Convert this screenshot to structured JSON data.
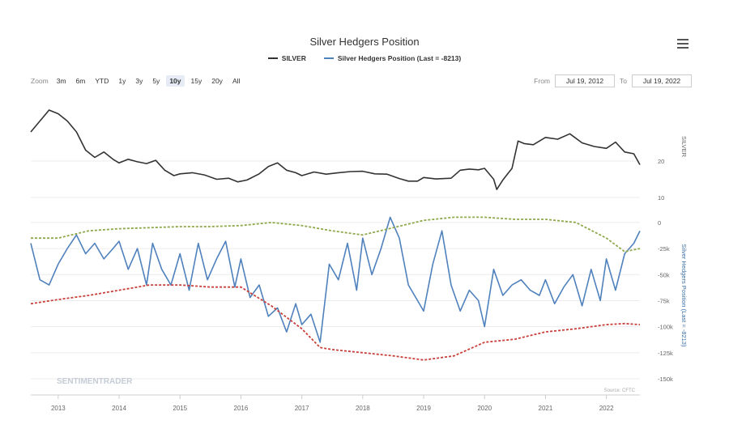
{
  "title": "Silver Hedgers Position",
  "legend": [
    {
      "label": "SILVER",
      "color": "#333333"
    },
    {
      "label": "Silver Hedgers Position (Last = -8213)",
      "color": "#4f81bd"
    }
  ],
  "zoom": {
    "label": "Zoom",
    "buttons": [
      "3m",
      "6m",
      "YTD",
      "1y",
      "3y",
      "5y",
      "10y",
      "15y",
      "20y",
      "All"
    ],
    "active": "10y"
  },
  "range": {
    "from_label": "From",
    "from_value": "Jul 19, 2012",
    "to_label": "To",
    "to_value": "Jul 19, 2022"
  },
  "source": "Source: CFTC",
  "watermark": "SENTIMENTRADER",
  "colors": {
    "silver": "#333333",
    "hedgers": "#4f81bd",
    "upper_band": "#8fa84a",
    "lower_band": "#c9403b"
  },
  "chart_data": {
    "type": "line",
    "x_ticks": [
      "2013",
      "2014",
      "2015",
      "2016",
      "2017",
      "2018",
      "2019",
      "2020",
      "2021",
      "2022"
    ],
    "x_range": [
      2012.55,
      2022.55
    ],
    "panels": [
      {
        "name": "SILVER",
        "ylabel": "SILVER",
        "y_ticks": [
          {
            "v": 20,
            "label": "20"
          },
          {
            "v": 10,
            "label": "10"
          }
        ],
        "ylim": [
          10,
          38
        ],
        "series": [
          {
            "name": "SILVER",
            "color": "#333333",
            "x": [
              2012.55,
              2012.7,
              2012.85,
              2013.0,
              2013.15,
              2013.3,
              2013.45,
              2013.6,
              2013.75,
              2013.9,
              2014.0,
              2014.15,
              2014.3,
              2014.45,
              2014.6,
              2014.75,
              2014.9,
              2015.0,
              2015.2,
              2015.4,
              2015.6,
              2015.8,
              2015.95,
              2016.1,
              2016.3,
              2016.45,
              2016.6,
              2016.75,
              2016.9,
              2017.0,
              2017.2,
              2017.4,
              2017.6,
              2017.8,
              2018.0,
              2018.2,
              2018.4,
              2018.6,
              2018.75,
              2018.9,
              2019.0,
              2019.2,
              2019.45,
              2019.6,
              2019.75,
              2019.9,
              2020.0,
              2020.15,
              2020.2,
              2020.3,
              2020.45,
              2020.55,
              2020.65,
              2020.8,
              2021.0,
              2021.2,
              2021.4,
              2021.6,
              2021.8,
              2022.0,
              2022.15,
              2022.3,
              2022.45,
              2022.55
            ],
            "y": [
              28,
              31,
              34,
              33,
              31,
              28,
              23,
              21,
              22.5,
              20.5,
              19.5,
              20.5,
              19.8,
              19.3,
              20.2,
              17.5,
              16,
              16.5,
              16.8,
              16.2,
              15,
              15.3,
              14.3,
              14.8,
              16.5,
              18.5,
              19.5,
              17.5,
              16.8,
              16,
              17,
              16.4,
              16.8,
              17.1,
              17.2,
              16.5,
              16.4,
              15.2,
              14.5,
              14.5,
              15.5,
              15.1,
              15.3,
              17.5,
              17.8,
              17.6,
              18,
              15,
              12.2,
              14.8,
              18,
              25.5,
              24.8,
              24.5,
              26.5,
              26,
              27.5,
              25,
              24,
              23.5,
              25.2,
              22.5,
              22,
              19
            ]
          }
        ]
      },
      {
        "name": "Silver Hedgers Position",
        "ylabel": "Silver Hedgers Position (Last = -8213)",
        "y_ticks": [
          {
            "v": 0,
            "label": "0"
          },
          {
            "v": -25000,
            "label": "-25k"
          },
          {
            "v": -50000,
            "label": "-50k"
          },
          {
            "v": -75000,
            "label": "-75k"
          },
          {
            "v": -100000,
            "label": "-100k"
          },
          {
            "v": -125000,
            "label": "-125k"
          },
          {
            "v": -150000,
            "label": "-150k"
          }
        ],
        "ylim": [
          -150000,
          10000
        ],
        "series": [
          {
            "name": "Silver Hedgers Position",
            "color": "#4f81bd",
            "x": [
              2012.55,
              2012.7,
              2012.85,
              2013.0,
              2013.15,
              2013.3,
              2013.45,
              2013.6,
              2013.75,
              2013.9,
              2014.0,
              2014.15,
              2014.3,
              2014.45,
              2014.55,
              2014.7,
              2014.85,
              2015.0,
              2015.15,
              2015.3,
              2015.45,
              2015.6,
              2015.75,
              2015.9,
              2016.0,
              2016.15,
              2016.3,
              2016.45,
              2016.6,
              2016.75,
              2016.9,
              2017.0,
              2017.15,
              2017.3,
              2017.45,
              2017.6,
              2017.75,
              2017.9,
              2018.0,
              2018.15,
              2018.3,
              2018.45,
              2018.6,
              2018.75,
              2018.9,
              2019.0,
              2019.15,
              2019.3,
              2019.45,
              2019.6,
              2019.75,
              2019.9,
              2020.0,
              2020.15,
              2020.3,
              2020.45,
              2020.6,
              2020.75,
              2020.9,
              2021.0,
              2021.15,
              2021.3,
              2021.45,
              2021.6,
              2021.75,
              2021.9,
              2022.0,
              2022.15,
              2022.3,
              2022.45,
              2022.55
            ],
            "y": [
              -20000,
              -55000,
              -60000,
              -40000,
              -25000,
              -12000,
              -30000,
              -20000,
              -35000,
              -25000,
              -18000,
              -45000,
              -25000,
              -60000,
              -20000,
              -45000,
              -60000,
              -30000,
              -65000,
              -20000,
              -55000,
              -35000,
              -18000,
              -62000,
              -35000,
              -72000,
              -60000,
              -90000,
              -82000,
              -105000,
              -78000,
              -98000,
              -88000,
              -115000,
              -40000,
              -55000,
              -20000,
              -65000,
              -15000,
              -50000,
              -25000,
              5000,
              -15000,
              -60000,
              -75000,
              -85000,
              -40000,
              -8000,
              -60000,
              -85000,
              -65000,
              -75000,
              -100000,
              -45000,
              -70000,
              -60000,
              -55000,
              -65000,
              -70000,
              -55000,
              -78000,
              -62000,
              -50000,
              -80000,
              -45000,
              -75000,
              -35000,
              -65000,
              -30000,
              -20000,
              -8213
            ]
          },
          {
            "name": "Upper band",
            "color": "#8fa84a",
            "dashed": true,
            "x": [
              2012.55,
              2013.0,
              2013.5,
              2014.0,
              2014.5,
              2015.0,
              2015.5,
              2016.0,
              2016.5,
              2017.0,
              2017.5,
              2018.0,
              2018.5,
              2019.0,
              2019.5,
              2020.0,
              2020.5,
              2021.0,
              2021.5,
              2022.0,
              2022.3,
              2022.55
            ],
            "y": [
              -15000,
              -15000,
              -8000,
              -6000,
              -5000,
              -4000,
              -4000,
              -3000,
              0,
              -3000,
              -8000,
              -12000,
              -5000,
              2000,
              5000,
              5000,
              3000,
              3000,
              0,
              -15000,
              -28000,
              -25000
            ]
          },
          {
            "name": "Lower band",
            "color": "#c9403b",
            "dashed": true,
            "x": [
              2012.55,
              2013.0,
              2013.5,
              2014.0,
              2014.5,
              2015.0,
              2015.5,
              2016.0,
              2016.5,
              2017.0,
              2017.3,
              2017.5,
              2018.0,
              2018.5,
              2019.0,
              2019.5,
              2020.0,
              2020.5,
              2021.0,
              2021.5,
              2022.0,
              2022.3,
              2022.55
            ],
            "y": [
              -78000,
              -74000,
              -70000,
              -65000,
              -60000,
              -60000,
              -62000,
              -62000,
              -80000,
              -102000,
              -120000,
              -122000,
              -125000,
              -128000,
              -132000,
              -128000,
              -115000,
              -112000,
              -105000,
              -102000,
              -98000,
              -97000,
              -98000
            ]
          }
        ]
      }
    ]
  }
}
